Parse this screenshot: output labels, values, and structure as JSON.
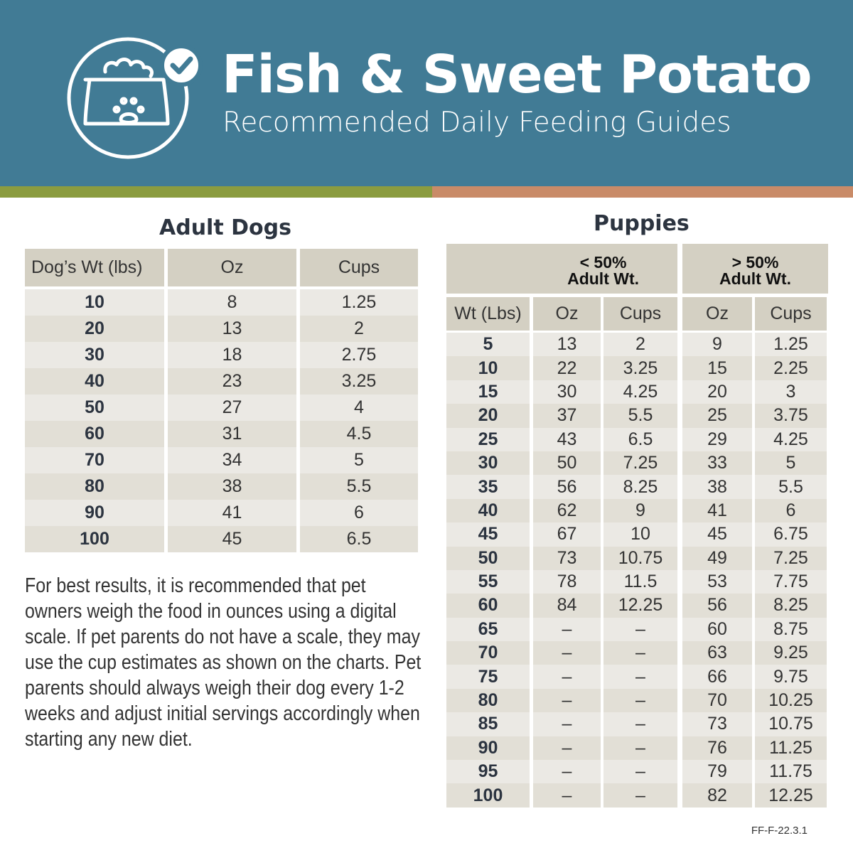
{
  "header": {
    "title": "Fish & Sweet Potato",
    "subtitle": "Recommended Daily Feeding Guides"
  },
  "colors": {
    "header": "#417b95",
    "green": "#8b9c40",
    "orange": "#c98b68",
    "cell_header": "#d4d0c3"
  },
  "adult": {
    "title": "Adult Dogs",
    "columns": [
      "Dog’s Wt (lbs)",
      "Oz",
      "Cups"
    ],
    "rows": [
      [
        "10",
        "8",
        "1.25"
      ],
      [
        "20",
        "13",
        "2"
      ],
      [
        "30",
        "18",
        "2.75"
      ],
      [
        "40",
        "23",
        "3.25"
      ],
      [
        "50",
        "27",
        "4"
      ],
      [
        "60",
        "31",
        "4.5"
      ],
      [
        "70",
        "34",
        "5"
      ],
      [
        "80",
        "38",
        "5.5"
      ],
      [
        "90",
        "41",
        "6"
      ],
      [
        "100",
        "45",
        "6.5"
      ]
    ]
  },
  "puppies": {
    "title": "Puppies",
    "groups": [
      "< 50%\nAdult Wt.",
      "> 50%\nAdult Wt."
    ],
    "columns": [
      "Wt (Lbs)",
      "Oz",
      "Cups",
      "Oz",
      "Cups"
    ],
    "rows": [
      [
        "5",
        "13",
        "2",
        "9",
        "1.25"
      ],
      [
        "10",
        "22",
        "3.25",
        "15",
        "2.25"
      ],
      [
        "15",
        "30",
        "4.25",
        "20",
        "3"
      ],
      [
        "20",
        "37",
        "5.5",
        "25",
        "3.75"
      ],
      [
        "25",
        "43",
        "6.5",
        "29",
        "4.25"
      ],
      [
        "30",
        "50",
        "7.25",
        "33",
        "5"
      ],
      [
        "35",
        "56",
        "8.25",
        "38",
        "5.5"
      ],
      [
        "40",
        "62",
        "9",
        "41",
        "6"
      ],
      [
        "45",
        "67",
        "10",
        "45",
        "6.75"
      ],
      [
        "50",
        "73",
        "10.75",
        "49",
        "7.25"
      ],
      [
        "55",
        "78",
        "11.5",
        "53",
        "7.75"
      ],
      [
        "60",
        "84",
        "12.25",
        "56",
        "8.25"
      ],
      [
        "65",
        "–",
        "–",
        "60",
        "8.75"
      ],
      [
        "70",
        "–",
        "–",
        "63",
        "9.25"
      ],
      [
        "75",
        "–",
        "–",
        "66",
        "9.75"
      ],
      [
        "80",
        "–",
        "–",
        "70",
        "10.25"
      ],
      [
        "85",
        "–",
        "–",
        "73",
        "10.75"
      ],
      [
        "90",
        "–",
        "–",
        "76",
        "11.25"
      ],
      [
        "95",
        "–",
        "–",
        "79",
        "11.75"
      ],
      [
        "100",
        "–",
        "–",
        "82",
        "12.25"
      ]
    ]
  },
  "note": "For best results, it is recommended that pet owners weigh the food in ounces using a digital scale. If pet parents do not have a scale, they may use the cup estimates as shown on the charts. Pet parents should always weigh their dog every 1-2 weeks and adjust initial servings accordingly when starting any new diet.",
  "code": "FF-F-22.3.1"
}
